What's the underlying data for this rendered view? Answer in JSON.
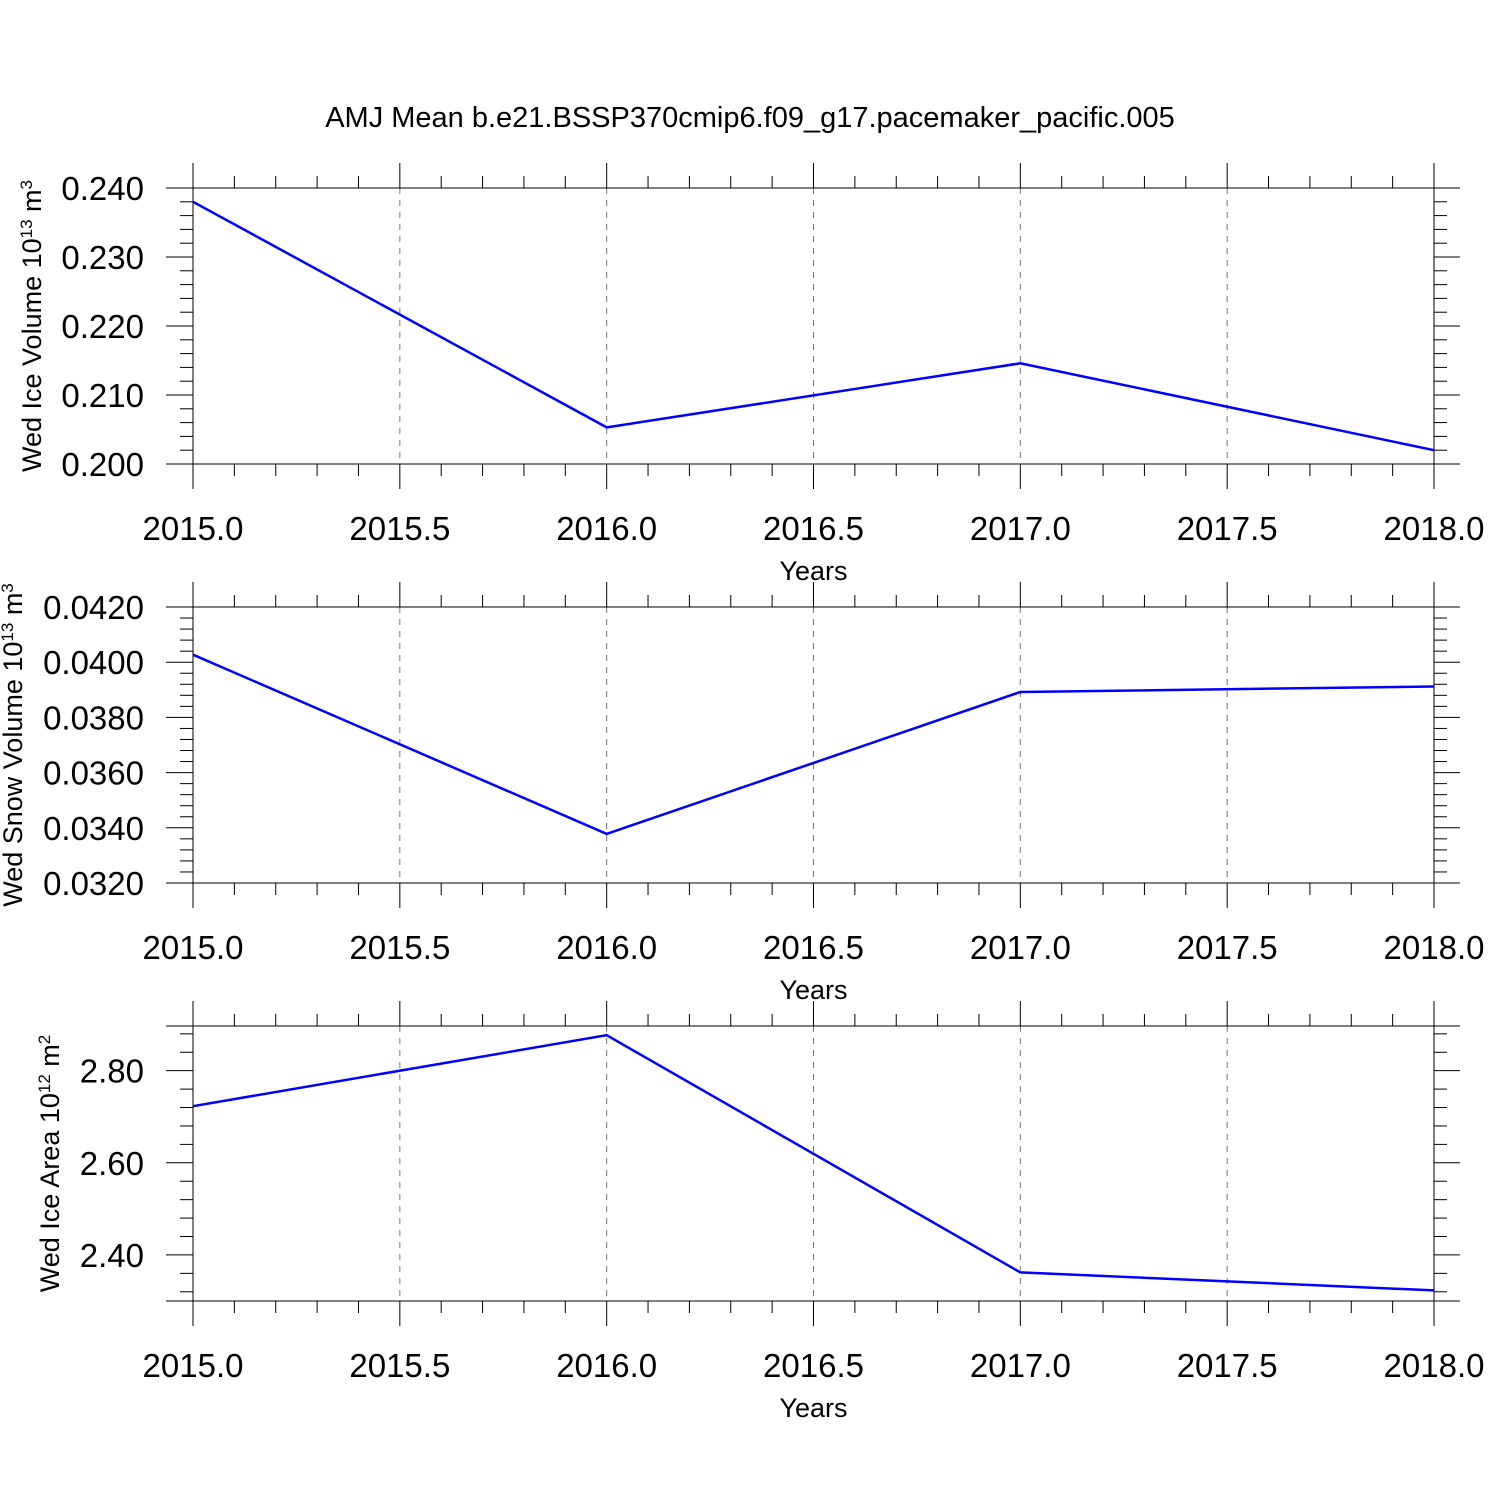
{
  "title": "AMJ Mean b.e21.BSSP370cmip6.f09_g17.pacemaker_pacific.005",
  "chart_data": [
    {
      "type": "line",
      "ylabel": {
        "text": "Wed Ice Volume 10",
        "exponent": "13",
        "unit": " m",
        "unit_exponent": "3"
      },
      "xlabel": "Years",
      "xlim": [
        2015.0,
        2018.0
      ],
      "ylim": [
        0.2,
        0.24
      ],
      "xticks": [
        "2015.0",
        "2015.5",
        "2016.0",
        "2016.5",
        "2017.0",
        "2017.5",
        "2018.0"
      ],
      "yticks": [
        "0.200",
        "0.210",
        "0.220",
        "0.230",
        "0.240"
      ],
      "x": [
        2015.0,
        2016.0,
        2017.0,
        2018.0
      ],
      "y": [
        0.238,
        0.2053,
        0.2146,
        0.202
      ],
      "line_color": "#0000ff",
      "grid": "vertical dashed at major x ticks"
    },
    {
      "type": "line",
      "ylabel": {
        "text": "Wed Snow Volume 10",
        "exponent": "13",
        "unit": " m",
        "unit_exponent": "3"
      },
      "xlabel": "Years",
      "xlim": [
        2015.0,
        2018.0
      ],
      "ylim": [
        0.032,
        0.042
      ],
      "xticks": [
        "2015.0",
        "2015.5",
        "2016.0",
        "2016.5",
        "2017.0",
        "2017.5",
        "2018.0"
      ],
      "yticks": [
        "0.0320",
        "0.0340",
        "0.0360",
        "0.0380",
        "0.0400",
        "0.0420"
      ],
      "x": [
        2015.0,
        2016.0,
        2017.0,
        2018.0
      ],
      "y": [
        0.04027,
        0.03378,
        0.03892,
        0.03912
      ],
      "line_color": "#0000ff",
      "grid": "vertical dashed at major x ticks"
    },
    {
      "type": "line",
      "ylabel": {
        "text": "Wed Ice Area 10",
        "exponent": "12",
        "unit": " m",
        "unit_exponent": "2"
      },
      "xlabel": "Years",
      "xlim": [
        2015.0,
        2018.0
      ],
      "ylim": [
        2.3,
        2.9
      ],
      "xticks": [
        "2015.0",
        "2015.5",
        "2016.0",
        "2016.5",
        "2017.0",
        "2017.5",
        "2018.0"
      ],
      "yticks": [
        "2.40",
        "2.60",
        "2.80"
      ],
      "x": [
        2015.0,
        2016.0,
        2017.0,
        2018.0
      ],
      "y": [
        2.723,
        2.877,
        2.362,
        2.323
      ],
      "line_color": "#0000ff",
      "grid": "vertical dashed at major x ticks"
    }
  ]
}
